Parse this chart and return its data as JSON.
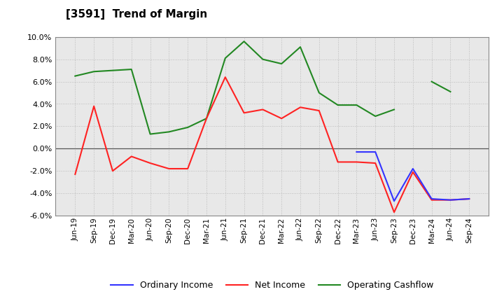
{
  "title": "[3591]  Trend of Margin",
  "x_labels": [
    "Jun-19",
    "Sep-19",
    "Dec-19",
    "Mar-20",
    "Jun-20",
    "Sep-20",
    "Dec-20",
    "Mar-21",
    "Jun-21",
    "Sep-21",
    "Dec-21",
    "Mar-22",
    "Jun-22",
    "Sep-22",
    "Dec-22",
    "Mar-23",
    "Jun-23",
    "Sep-23",
    "Dec-23",
    "Mar-24",
    "Jun-24",
    "Sep-24"
  ],
  "ordinary_income": [
    null,
    null,
    null,
    null,
    null,
    null,
    null,
    null,
    null,
    null,
    null,
    null,
    null,
    null,
    null,
    -0.3,
    -0.3,
    -4.7,
    -1.8,
    -4.5,
    -4.6,
    -4.5
  ],
  "net_income": [
    -2.3,
    3.8,
    -2.0,
    -0.7,
    -1.3,
    -1.8,
    -1.8,
    2.7,
    6.4,
    3.2,
    3.5,
    2.7,
    3.7,
    3.4,
    -1.2,
    -1.2,
    -1.3,
    -5.7,
    -2.1,
    -4.6,
    -4.6,
    -4.5
  ],
  "operating_cashflow": [
    6.5,
    6.9,
    7.0,
    7.1,
    1.3,
    1.5,
    1.9,
    2.7,
    8.1,
    9.6,
    8.0,
    7.6,
    9.1,
    5.0,
    3.9,
    3.9,
    2.9,
    3.5,
    null,
    6.0,
    5.1,
    null
  ],
  "ylim": [
    -6.0,
    10.0
  ],
  "yticks": [
    -6.0,
    -4.0,
    -2.0,
    0.0,
    2.0,
    4.0,
    6.0,
    8.0,
    10.0
  ],
  "colors": {
    "ordinary_income": "#3333FF",
    "net_income": "#FF2222",
    "operating_cashflow": "#228822"
  },
  "background_color": "#FFFFFF",
  "plot_bg_color": "#E8E8E8",
  "grid_color": "#BBBBBB",
  "legend_labels": [
    "Ordinary Income",
    "Net Income",
    "Operating Cashflow"
  ]
}
